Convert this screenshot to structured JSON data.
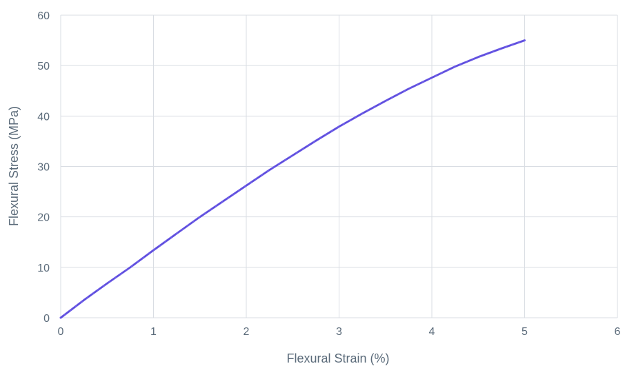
{
  "chart_data": {
    "type": "line",
    "title": "",
    "xlabel": "Flexural Strain (%)",
    "ylabel": "Flexural Stress (MPa)",
    "xlim": [
      0,
      6
    ],
    "ylim": [
      0,
      60
    ],
    "x_ticks": [
      "0",
      "1",
      "2",
      "3",
      "4",
      "5",
      "6"
    ],
    "y_ticks": [
      "0",
      "10",
      "20",
      "30",
      "40",
      "50",
      "60"
    ],
    "grid": true,
    "colors": {
      "series": "#6b5be6",
      "grid": "#d9dde3",
      "text": "#5b6b7a"
    },
    "series": [
      {
        "x": [
          0,
          0.25,
          0.5,
          0.75,
          1.0,
          1.25,
          1.5,
          1.75,
          2.0,
          2.25,
          2.5,
          2.75,
          3.0,
          3.25,
          3.5,
          3.75,
          4.0,
          4.25,
          4.5,
          4.75,
          5.0
        ],
        "y": [
          0,
          3.5,
          6.8,
          10.0,
          13.4,
          16.7,
          20.0,
          23.1,
          26.2,
          29.3,
          32.2,
          35.1,
          37.9,
          40.5,
          43.0,
          45.4,
          47.6,
          49.8,
          51.7,
          53.4,
          55.0
        ]
      }
    ]
  }
}
